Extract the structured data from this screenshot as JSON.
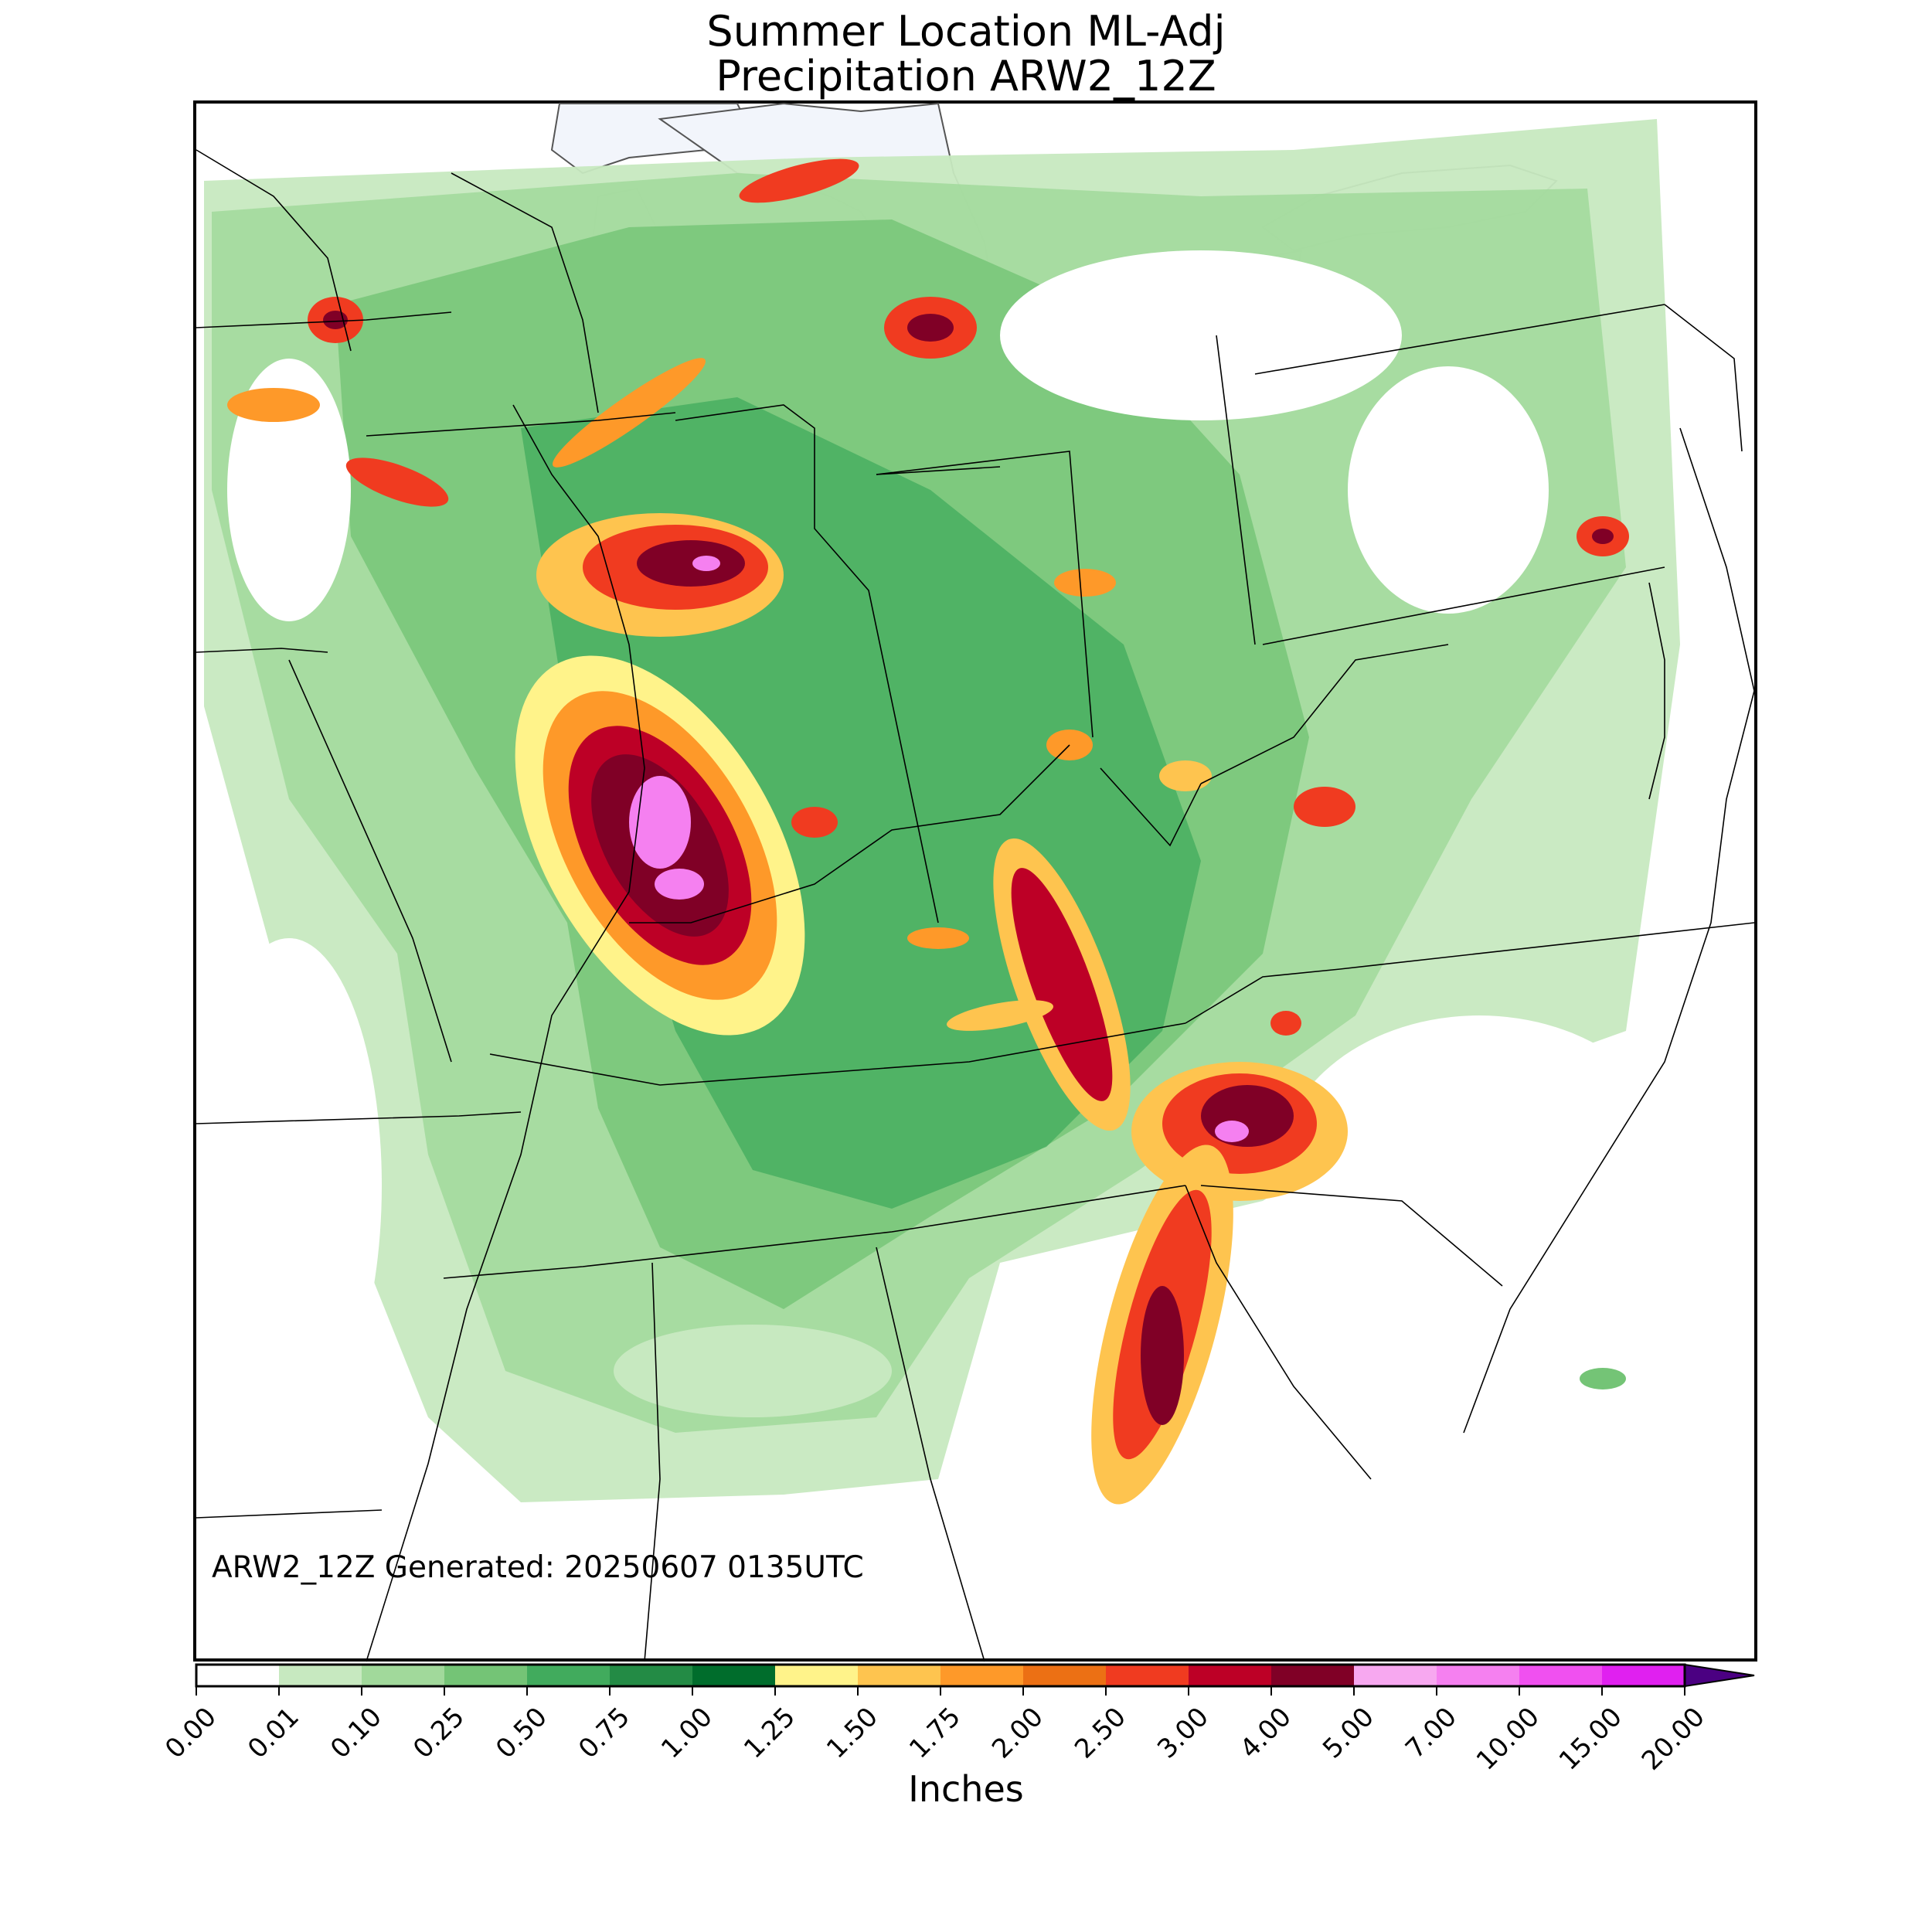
{
  "title_line1": "Summer Location ML-Adj",
  "title_line2": "Precipitation ARW2_12Z",
  "footer_note": "ARW2_12Z Generated: 20250607 0135UTC",
  "colorbar": {
    "label": "Inches",
    "ticks": [
      "0.00",
      "0.01",
      "0.10",
      "0.25",
      "0.50",
      "0.75",
      "1.00",
      "1.25",
      "1.50",
      "1.75",
      "2.00",
      "2.50",
      "3.00",
      "4.00",
      "5.00",
      "7.00",
      "10.00",
      "15.00",
      "20.00"
    ],
    "colors": [
      "#ffffff",
      "#c7e9c0",
      "#a1d99b",
      "#74c476",
      "#41ab5d",
      "#238b45",
      "#006d2c",
      "#fff38a",
      "#fec44f",
      "#fe9929",
      "#ec7014",
      "#f03b20",
      "#bd0026",
      "#800026",
      "#f7a8f0",
      "#f580f0",
      "#f050f0",
      "#e020f0",
      "#b010e0",
      "#8000c8"
    ],
    "extend_color": "#4b0082"
  },
  "map_colors": {
    "water": "#f2f5fb",
    "boundary": "#000000"
  }
}
